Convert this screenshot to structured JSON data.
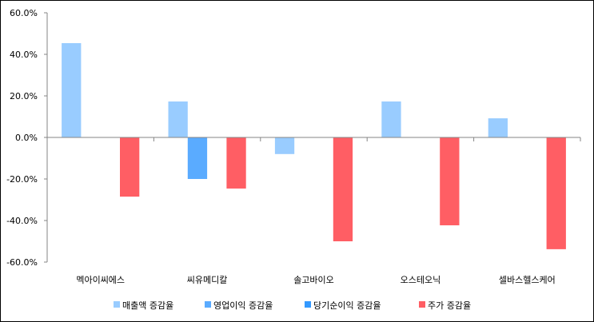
{
  "chart_data": {
    "type": "bar",
    "title": "",
    "xlabel": "",
    "ylabel": "",
    "categories": [
      "멕아이씨에스",
      "씨유메디칼",
      "솔고바이오",
      "오스테오닉",
      "셀바스헬스케어"
    ],
    "series": [
      {
        "name": "매출액 증감율",
        "color": "#99CCFF",
        "values": [
          45.4,
          17.3,
          -8.0,
          17.3,
          9.2
        ]
      },
      {
        "name": "영업이익 증감율",
        "color": "#5AABFF",
        "values": [
          null,
          -20.0,
          null,
          null,
          null
        ]
      },
      {
        "name": "당기순이익 증감율",
        "color": "#3399FF",
        "values": [
          null,
          null,
          null,
          null,
          null
        ]
      },
      {
        "name": "주가 증감율",
        "color": "#FF5E64",
        "values": [
          -28.5,
          -24.6,
          -50.0,
          -42.3,
          -53.8
        ]
      }
    ],
    "ylim": [
      -60,
      60
    ],
    "yticks": [
      60,
      40,
      20,
      0,
      -20,
      -40,
      -60
    ],
    "ytick_labels": [
      "60.0%",
      "40.0%",
      "20.0%",
      "0.0%",
      "-20.0%",
      "-40.0%",
      "-60.0%"
    ],
    "grid": false,
    "legend": "bottom"
  }
}
